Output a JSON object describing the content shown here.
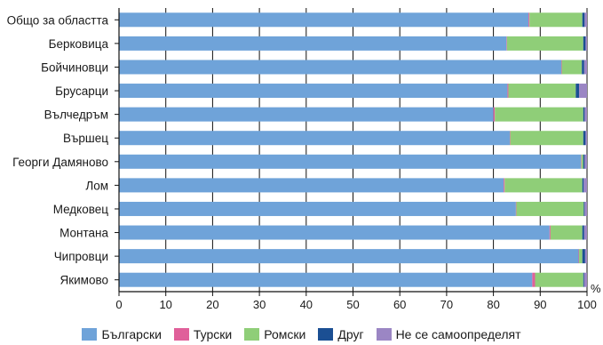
{
  "chart_data": {
    "type": "bar",
    "orientation": "horizontal",
    "stacked": true,
    "categories": [
      "Общо за областта",
      "Берковица",
      "Бойчиновци",
      "Брусарци",
      "Вълчедръм",
      "Вършец",
      "Георги Дамяново",
      "Лом",
      "Медковец",
      "Монтана",
      "Чипровци",
      "Якимово"
    ],
    "series": [
      {
        "name": "Български",
        "color": "#6fa3d9",
        "values": [
          87.5,
          82.8,
          94.5,
          83.0,
          80.0,
          83.5,
          98.7,
          82.2,
          84.8,
          92.0,
          98.2,
          88.3
        ]
      },
      {
        "name": "Турски",
        "color": "#e0609a",
        "values": [
          0.2,
          0.1,
          0.1,
          0.2,
          0.3,
          0.1,
          0.1,
          0.2,
          0.1,
          0.2,
          0.1,
          0.6
        ]
      },
      {
        "name": "Ромски",
        "color": "#8fce78",
        "values": [
          11.3,
          16.3,
          4.3,
          14.4,
          18.9,
          15.6,
          0.4,
          16.6,
          14.4,
          6.8,
          0.7,
          10.3
        ]
      },
      {
        "name": "Друг",
        "color": "#1b4f93",
        "values": [
          0.5,
          0.5,
          0.5,
          0.7,
          0.3,
          0.5,
          0.3,
          0.3,
          0.2,
          0.4,
          0.6,
          0.2
        ]
      },
      {
        "name": "Не се самоопределят",
        "color": "#9b86c4",
        "values": [
          0.5,
          0.3,
          0.6,
          1.7,
          0.5,
          0.3,
          0.5,
          0.7,
          0.5,
          0.6,
          0.4,
          0.6
        ]
      }
    ],
    "xlim": [
      0,
      100
    ],
    "xticks": [
      "0",
      "10",
      "20",
      "30",
      "40",
      "50",
      "60",
      "70",
      "80",
      "90",
      "100"
    ],
    "x_unit": "%",
    "grid": true,
    "legend_position": "bottom"
  }
}
